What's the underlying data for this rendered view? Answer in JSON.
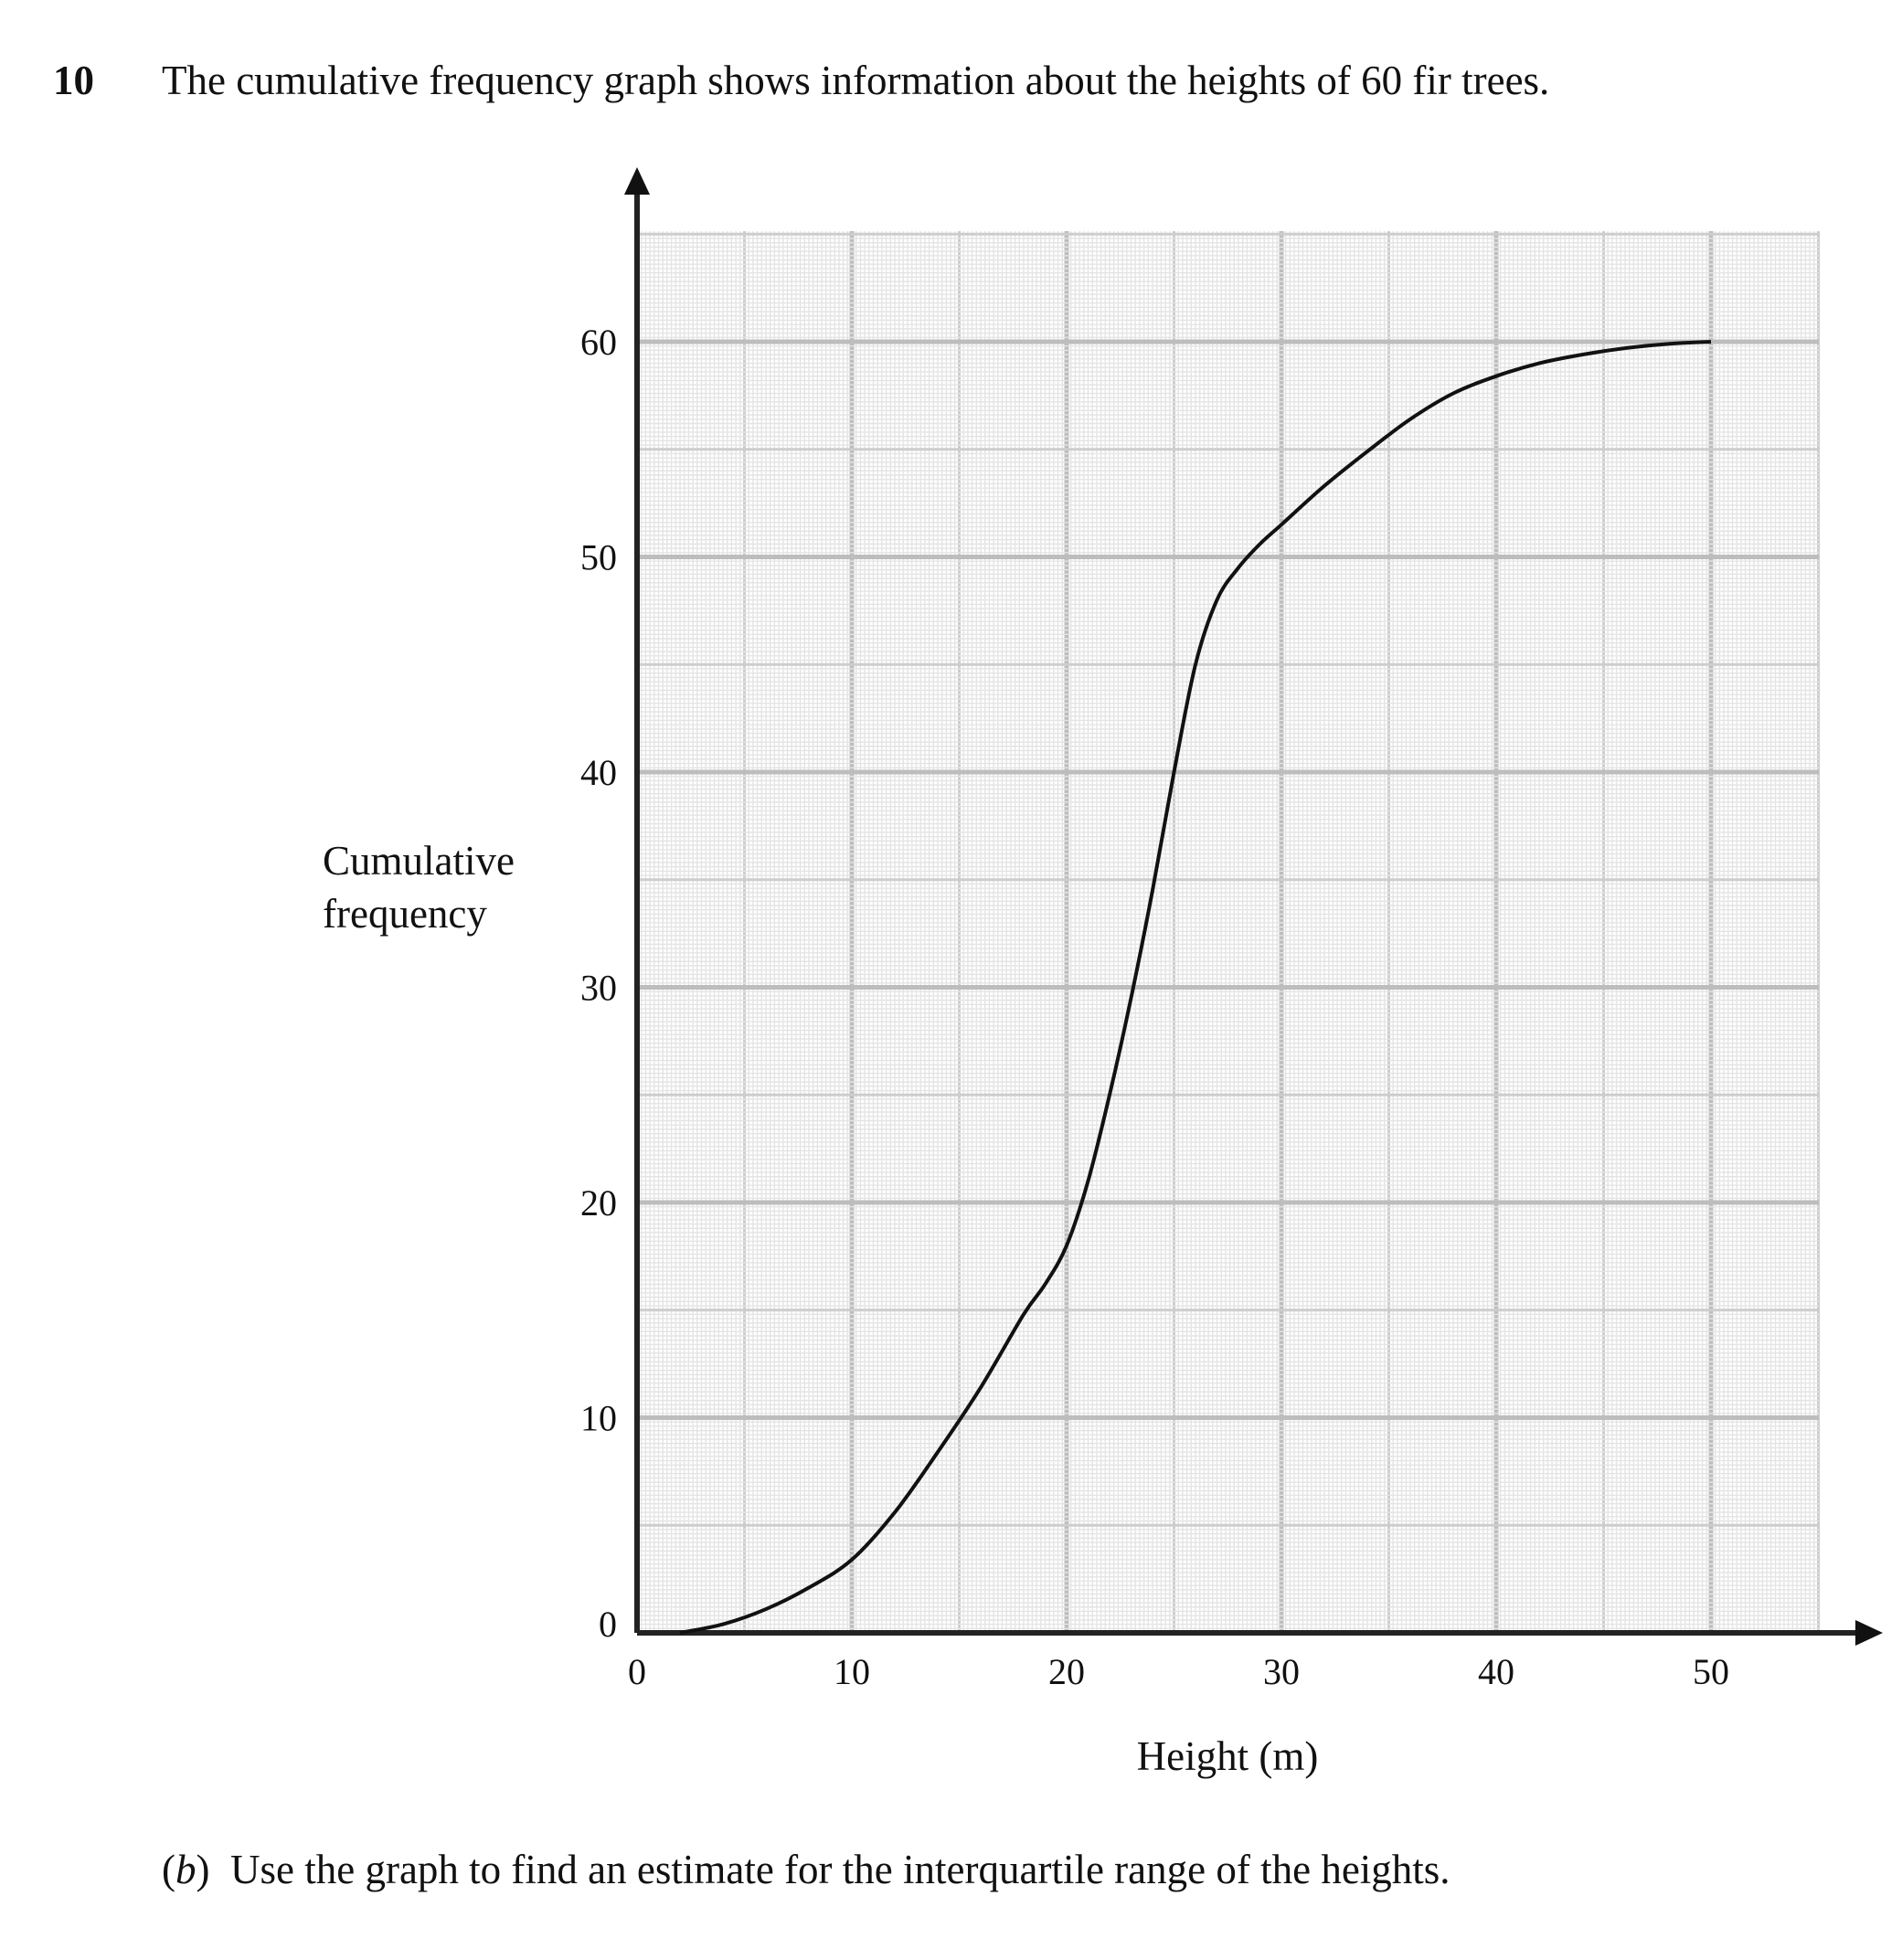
{
  "question": {
    "number": "10",
    "text": "The cumulative frequency graph shows information about the heights of 60 fir trees.",
    "part_label": "b",
    "part_text": "Use the graph to find an estimate for the interquartile range of the heights."
  },
  "chart_data": {
    "type": "line",
    "title": "",
    "xlabel": "Height (m)",
    "ylabel_lines": [
      "Cumulative",
      "frequency"
    ],
    "xlim": [
      0,
      55
    ],
    "ylim": [
      0,
      65
    ],
    "x_ticks": [
      0,
      10,
      20,
      30,
      40,
      50
    ],
    "y_ticks": [
      0,
      10,
      20,
      30,
      40,
      50,
      60
    ],
    "grid": true,
    "series": [
      {
        "x": [
          2,
          4,
          6,
          8,
          10,
          12,
          14,
          16,
          18,
          19,
          20,
          21,
          22,
          23,
          24,
          25,
          26,
          27,
          28,
          29,
          30,
          32,
          34,
          36,
          38,
          40,
          42,
          44,
          46,
          48,
          50
        ],
        "y": [
          0,
          0.4,
          1.1,
          2.1,
          3.4,
          5.6,
          8.4,
          11.4,
          14.8,
          16.2,
          18.0,
          21.0,
          25.0,
          29.5,
          34.5,
          40.0,
          45.0,
          48.0,
          49.5,
          50.6,
          51.5,
          53.3,
          54.9,
          56.4,
          57.6,
          58.4,
          59.0,
          59.4,
          59.7,
          59.9,
          60
        ]
      }
    ]
  }
}
